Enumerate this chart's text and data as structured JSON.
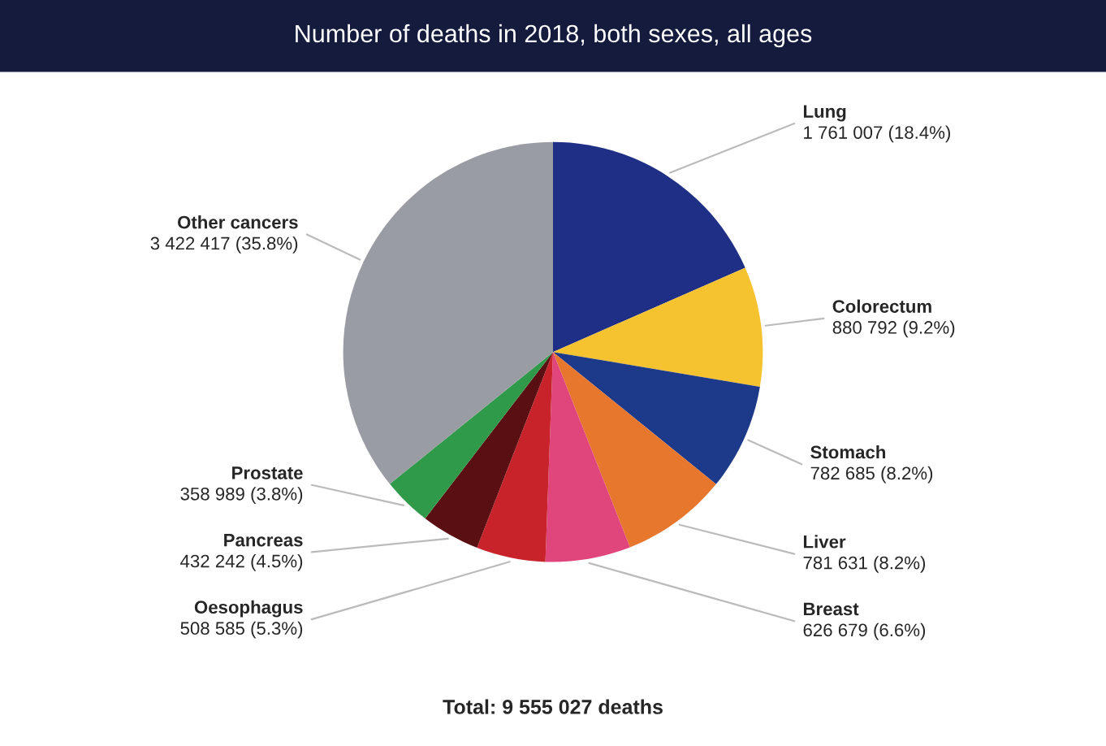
{
  "chart_data": {
    "type": "pie",
    "title": "Number of deaths in 2018, both sexes, all ages",
    "categories": [
      "Lung",
      "Colorectum",
      "Stomach",
      "Liver",
      "Breast",
      "Oesophagus",
      "Pancreas",
      "Prostate",
      "Other cancers"
    ],
    "values": [
      1761007,
      880792,
      782685,
      781631,
      626679,
      508585,
      432242,
      358989,
      3422417
    ],
    "value_labels": [
      "1 761 007 (18.4%)",
      "880 792 (9.2%)",
      "782 685 (8.2%)",
      "781 631 (8.2%)",
      "626 679 (6.6%)",
      "508 585 (5.3%)",
      "432 242 (4.5%)",
      "358 989 (3.8%)",
      "3 422 417 (35.8%)"
    ],
    "colors": [
      "#1f2f86",
      "#f5c230",
      "#1d3a8a",
      "#e8772e",
      "#e0457b",
      "#c8232b",
      "#5a0f12",
      "#2e9a4a",
      "#9a9ca3"
    ],
    "annotations": [
      "Total: 9 555 027 deaths"
    ]
  }
}
